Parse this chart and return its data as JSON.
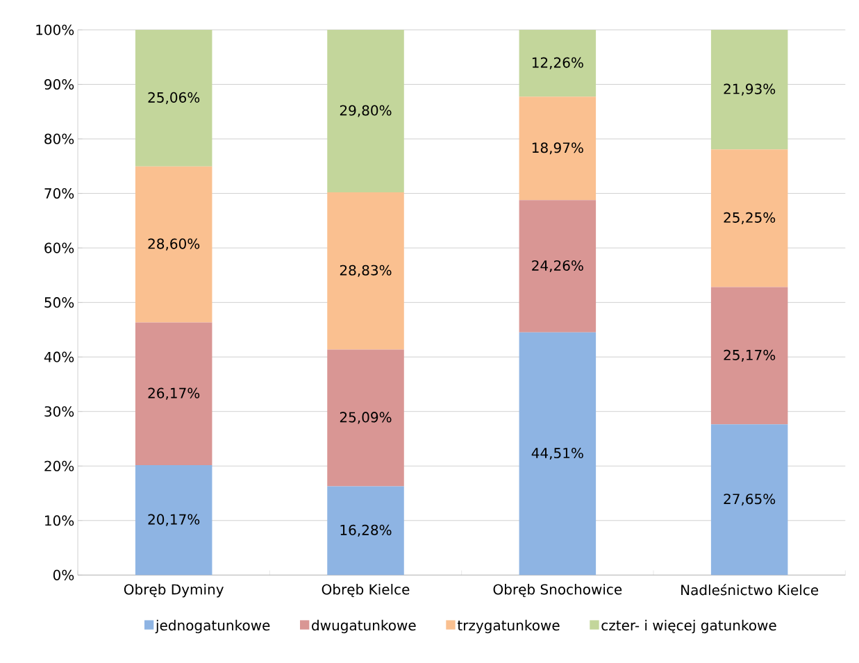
{
  "chart_data": {
    "type": "bar",
    "stacked": true,
    "categories": [
      "Obręb Dyminy",
      "Obręb Kielce",
      "Obręb Snochowice",
      "Nadleśnictwo Kielce"
    ],
    "series": [
      {
        "name": "jednogatunkowe",
        "color": "#8eb4e3",
        "values": [
          20.17,
          16.28,
          44.51,
          27.65
        ],
        "value_labels": [
          "20,17%",
          "16,28%",
          "44,51%",
          "27,65%"
        ]
      },
      {
        "name": "dwugatunkowe",
        "color": "#d99694",
        "values": [
          26.17,
          25.09,
          24.26,
          25.17
        ],
        "value_labels": [
          "26,17%",
          "25,09%",
          "24,26%",
          "25,17%"
        ]
      },
      {
        "name": "trzygatunkowe",
        "color": "#fac090",
        "values": [
          28.6,
          28.83,
          18.97,
          25.25
        ],
        "value_labels": [
          "28,60%",
          "28,83%",
          "18,97%",
          "25,25%"
        ]
      },
      {
        "name": "czter- i więcej gatunkowe",
        "color": "#c3d69b",
        "values": [
          25.06,
          29.8,
          12.26,
          21.93
        ],
        "value_labels": [
          "25,06%",
          "29,80%",
          "12,26%",
          "21,93%"
        ]
      }
    ],
    "ylim": [
      0,
      100
    ],
    "yticks": [
      {
        "value": 0,
        "label": "0%"
      },
      {
        "value": 10,
        "label": "10%"
      },
      {
        "value": 20,
        "label": "20%"
      },
      {
        "value": 30,
        "label": "30%"
      },
      {
        "value": 40,
        "label": "40%"
      },
      {
        "value": 50,
        "label": "50%"
      },
      {
        "value": 60,
        "label": "60%"
      },
      {
        "value": 70,
        "label": "70%"
      },
      {
        "value": 80,
        "label": "80%"
      },
      {
        "value": 90,
        "label": "90%"
      },
      {
        "value": 100,
        "label": "100%"
      }
    ],
    "grid": "y",
    "legend": "bottom"
  }
}
